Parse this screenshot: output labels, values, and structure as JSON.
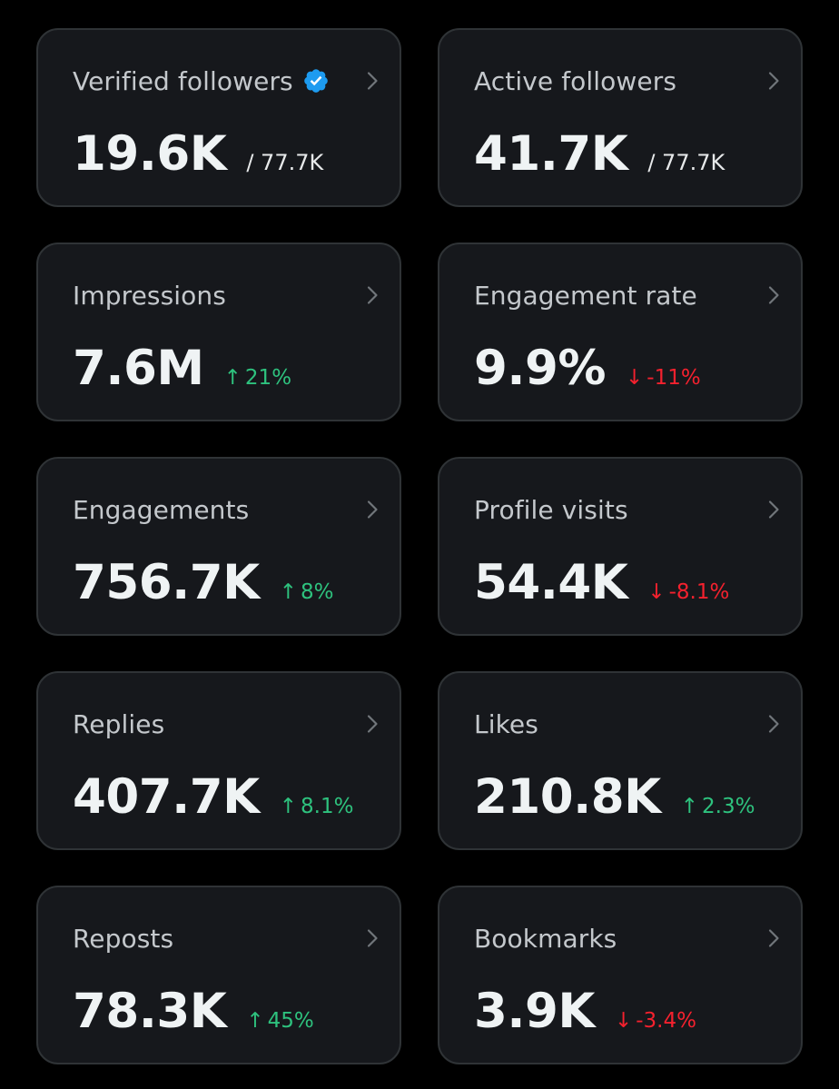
{
  "colors": {
    "background": "#000000",
    "card": "#16181c",
    "card_border": "#2f3336",
    "verified_badge": "#1d9bf0",
    "trend_up": "#2ec27e",
    "trend_down": "#f4212e"
  },
  "cards": [
    {
      "title": "Verified followers",
      "value": "19.6K",
      "denominator": "/ 77.7K",
      "verified_badge": true,
      "icon": "verified-badge-icon"
    },
    {
      "title": "Active followers",
      "value": "41.7K",
      "denominator": "/ 77.7K"
    },
    {
      "title": "Impressions",
      "value": "7.6M",
      "trend": {
        "direction": "up",
        "arrow": "↑",
        "text": "21%"
      }
    },
    {
      "title": "Engagement rate",
      "value": "9.9%",
      "trend": {
        "direction": "down",
        "arrow": "↓",
        "text": "-11%"
      }
    },
    {
      "title": "Engagements",
      "value": "756.7K",
      "trend": {
        "direction": "up",
        "arrow": "↑",
        "text": "8%"
      }
    },
    {
      "title": "Profile visits",
      "value": "54.4K",
      "trend": {
        "direction": "down",
        "arrow": "↓",
        "text": "-8.1%"
      }
    },
    {
      "title": "Replies",
      "value": "407.7K",
      "trend": {
        "direction": "up",
        "arrow": "↑",
        "text": "8.1%"
      }
    },
    {
      "title": "Likes",
      "value": "210.8K",
      "trend": {
        "direction": "up",
        "arrow": "↑",
        "text": "2.3%"
      }
    },
    {
      "title": "Reposts",
      "value": "78.3K",
      "trend": {
        "direction": "up",
        "arrow": "↑",
        "text": "45%"
      }
    },
    {
      "title": "Bookmarks",
      "value": "3.9K",
      "trend": {
        "direction": "down",
        "arrow": "↓",
        "text": "-3.4%"
      }
    }
  ]
}
